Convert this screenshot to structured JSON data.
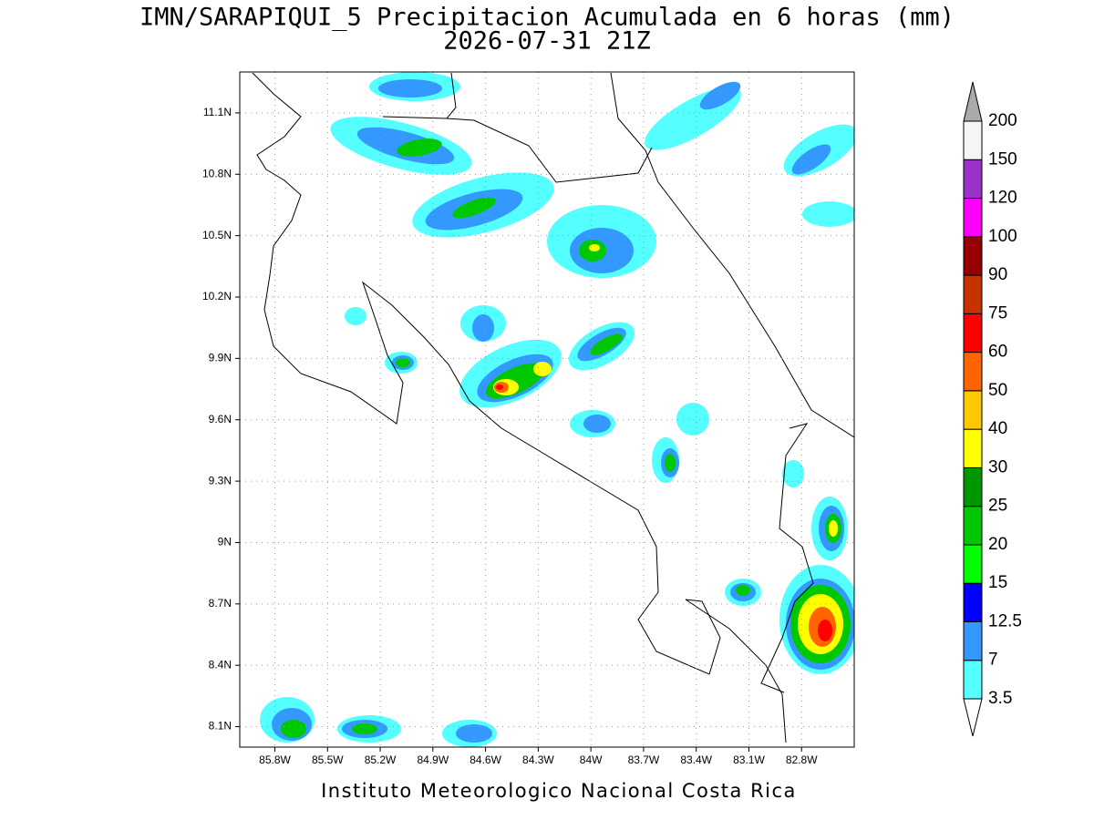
{
  "header": {
    "title": "IMN/SARAPIQUI_5 Precipitacion Acumulada en 6 horas (mm)",
    "subtitle": "2026-07-31 21Z"
  },
  "map": {
    "lon_range": [
      -86.0,
      -82.5
    ],
    "lat_range": [
      8.0,
      11.3
    ],
    "x_ticks": [
      {
        "value": -85.8,
        "label": "85.8W"
      },
      {
        "value": -85.5,
        "label": "85.5W"
      },
      {
        "value": -85.2,
        "label": "85.2W"
      },
      {
        "value": -84.9,
        "label": "84.9W"
      },
      {
        "value": -84.6,
        "label": "84.6W"
      },
      {
        "value": -84.3,
        "label": "84.3W"
      },
      {
        "value": -84.0,
        "label": "84W"
      },
      {
        "value": -83.7,
        "label": "83.7W"
      },
      {
        "value": -83.4,
        "label": "83.4W"
      },
      {
        "value": -83.1,
        "label": "83.1W"
      },
      {
        "value": -82.8,
        "label": "82.8W"
      }
    ],
    "y_ticks": [
      {
        "value": 8.1,
        "label": "8.1N"
      },
      {
        "value": 8.4,
        "label": "8.4N"
      },
      {
        "value": 8.7,
        "label": "8.7N"
      },
      {
        "value": 9.0,
        "label": "9N"
      },
      {
        "value": 9.3,
        "label": "9.3N"
      },
      {
        "value": 9.6,
        "label": "9.6N"
      },
      {
        "value": 9.9,
        "label": "9.9N"
      },
      {
        "value": 10.2,
        "label": "10.2N"
      },
      {
        "value": 10.5,
        "label": "10.5N"
      },
      {
        "value": 10.8,
        "label": "10.8N"
      },
      {
        "value": 11.1,
        "label": "11.1N"
      }
    ],
    "grid": true
  },
  "colorbar": {
    "levels": [
      3.5,
      7,
      12.5,
      15,
      20,
      25,
      30,
      40,
      50,
      60,
      75,
      90,
      100,
      120,
      150,
      200
    ],
    "colors": [
      "#55ffff",
      "#3399ff",
      "#0000ff",
      "#00ff00",
      "#00c800",
      "#009600",
      "#ffff00",
      "#ffc800",
      "#ff6400",
      "#ff0000",
      "#c83200",
      "#960000",
      "#ff00ff",
      "#9933cc",
      "#f5f5f5"
    ],
    "under_color": "#ffffff",
    "over_color": "#aaaaaa"
  },
  "footer": "Instituto Meteorologico Nacional Costa Rica"
}
